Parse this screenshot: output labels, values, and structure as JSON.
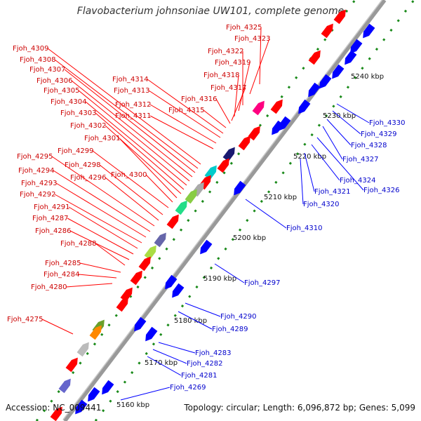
{
  "title": "Flavobacterium johnsoniae UW101, complete genome",
  "accession": "Accession: NC_009441",
  "topology": "Topology: circular; Length: 6,096,872 bp; Genes: 5,099",
  "colors": {
    "forward": "#ff0000",
    "reverse": "#0000ff",
    "label_fwd": "#cc0000",
    "label_rev": "#0000cc",
    "backbone": "#999999",
    "tick": "#1a8a1a"
  },
  "scale_labels": [
    "5160 kbp",
    "5170 kbp",
    "5180 kbp",
    "5190 kbp",
    "5200 kbp",
    "5210 kbp",
    "5220 kbp",
    "5230 kbp",
    "5240 kbp"
  ],
  "forward_labels": [
    "Fjoh_4325",
    "Fjoh_4323",
    "Fjoh_4322",
    "Fjoh_4319",
    "Fjoh_4318",
    "Fjoh_4317",
    "Fjoh_4316",
    "Fjoh_4315",
    "Fjoh_4314",
    "Fjoh_4313",
    "Fjoh_4312",
    "Fjoh_4311",
    "Fjoh_4309",
    "Fjoh_4308",
    "Fjoh_4307",
    "Fjoh_4306",
    "Fjoh_4305",
    "Fjoh_4304",
    "Fjoh_4303",
    "Fjoh_4302",
    "Fjoh_4301",
    "Fjoh_4300",
    "Fjoh_4299",
    "Fjoh_4298",
    "Fjoh_4296",
    "Fjoh_4295",
    "Fjoh_4294",
    "Fjoh_4293",
    "Fjoh_4292",
    "Fjoh_4291",
    "Fjoh_4287",
    "Fjoh_4286",
    "Fjoh_4288",
    "Fjoh_4285",
    "Fjoh_4284",
    "Fjoh_4280",
    "Fjoh_4275"
  ],
  "reverse_labels": [
    "Fjoh_4330",
    "Fjoh_4329",
    "Fjoh_4328",
    "Fjoh_4327",
    "Fjoh_4326",
    "Fjoh_4324",
    "Fjoh_4321",
    "Fjoh_4320",
    "Fjoh_4310",
    "Fjoh_4297",
    "Fjoh_4290",
    "Fjoh_4289",
    "Fjoh_4283",
    "Fjoh_4282",
    "Fjoh_4281",
    "Fjoh_4269"
  ]
}
